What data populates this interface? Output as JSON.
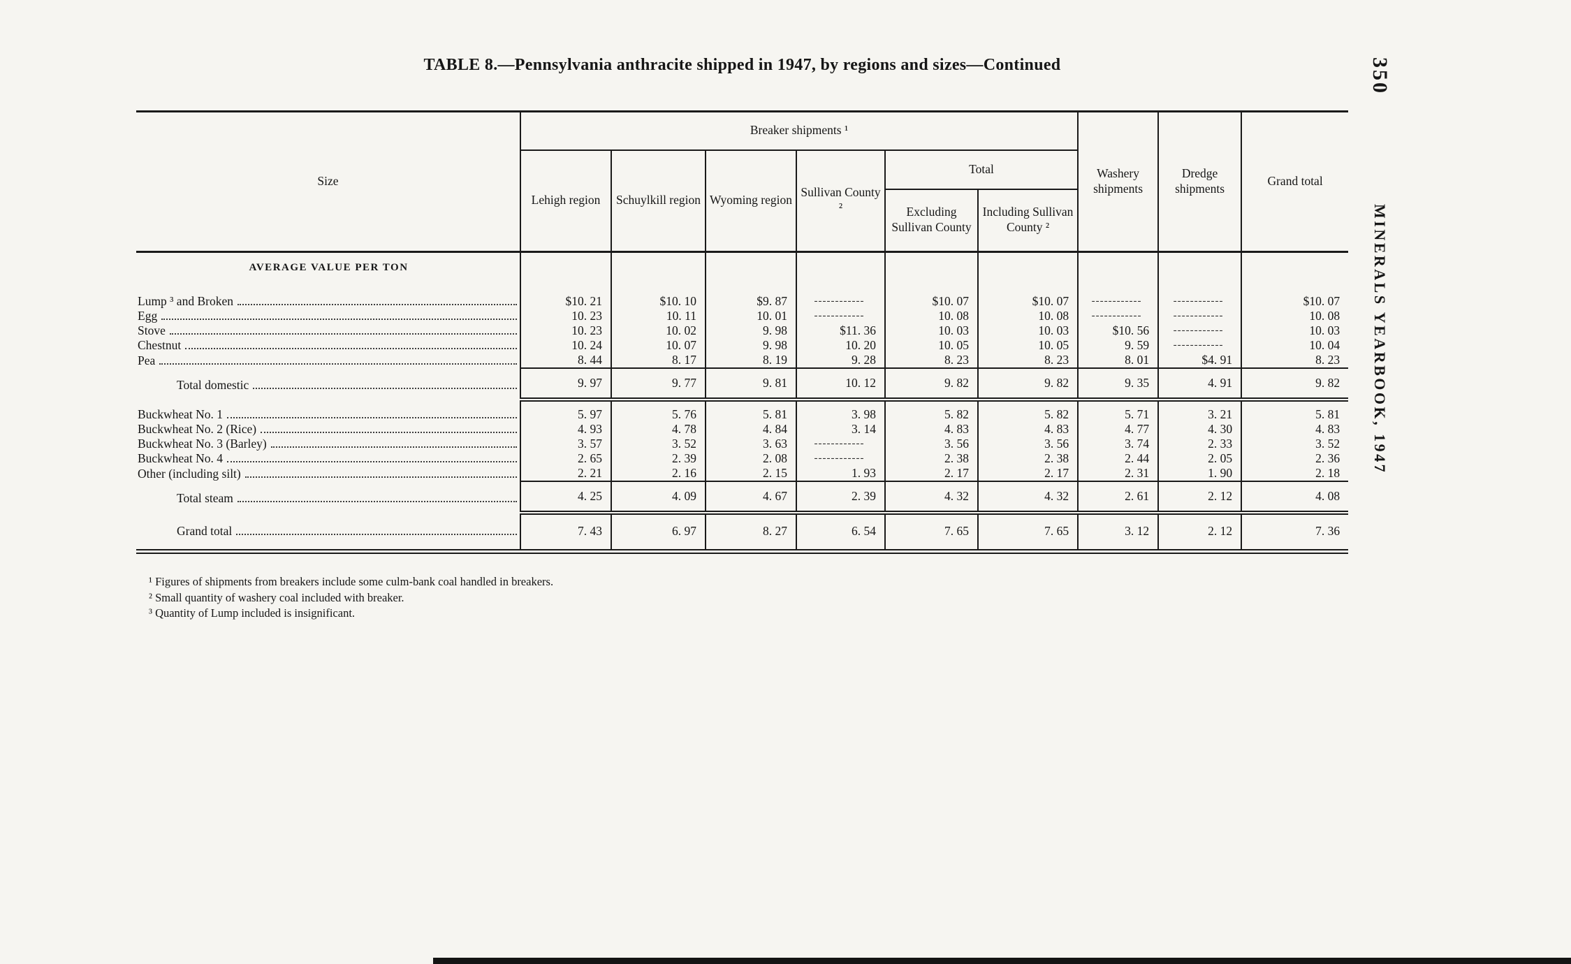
{
  "page": {
    "title": "TABLE 8.—Pennsylvania anthracite shipped in 1947, by regions and sizes—Continued",
    "page_number": "350",
    "margin_text": "MINERALS YEARBOOK, 1947"
  },
  "table": {
    "breaker_group": "Breaker shipments ¹",
    "total_group": "Total",
    "col_size": "Size",
    "col_lehigh": "Lehigh region",
    "col_schuylkill": "Schuylkill region",
    "col_wyoming": "Wyoming region",
    "col_sullivan": "Sullivan County ²",
    "col_excluding": "Excluding Sullivan County",
    "col_including": "Including Sullivan County ²",
    "col_washery": "Washery shipments",
    "col_dredge": "Dredge shipments",
    "col_grand": "Grand total",
    "section_header": "AVERAGE VALUE PER TON",
    "rows": [
      {
        "label": "Lump ³ and Broken",
        "type": "data",
        "group_start": true,
        "values": [
          "$10. 21",
          "$10. 10",
          "$9. 87",
          "------------",
          "$10. 07",
          "$10. 07",
          "------------",
          "------------",
          "$10. 07"
        ]
      },
      {
        "label": "Egg",
        "type": "data",
        "values": [
          "10. 23",
          "10. 11",
          "10. 01",
          "------------",
          "10. 08",
          "10. 08",
          "------------",
          "------------",
          "10. 08"
        ]
      },
      {
        "label": "Stove",
        "type": "data",
        "values": [
          "10. 23",
          "10. 02",
          "9. 98",
          "$11. 36",
          "10. 03",
          "10. 03",
          "$10. 56",
          "------------",
          "10. 03"
        ]
      },
      {
        "label": "Chestnut",
        "type": "data",
        "values": [
          "10. 24",
          "10. 07",
          "9. 98",
          "10. 20",
          "10. 05",
          "10. 05",
          "9. 59",
          "------------",
          "10. 04"
        ]
      },
      {
        "label": "Pea",
        "type": "data",
        "values": [
          "8. 44",
          "8. 17",
          "8. 19",
          "9. 28",
          "8. 23",
          "8. 23",
          "8. 01",
          "$4. 91",
          "8. 23"
        ]
      },
      {
        "label": "Total domestic",
        "type": "total",
        "values": [
          "9. 97",
          "9. 77",
          "9. 81",
          "10. 12",
          "9. 82",
          "9. 82",
          "9. 35",
          "4. 91",
          "9. 82"
        ]
      },
      {
        "label": "Buckwheat No. 1",
        "type": "data",
        "group_start": true,
        "values": [
          "5. 97",
          "5. 76",
          "5. 81",
          "3. 98",
          "5. 82",
          "5. 82",
          "5. 71",
          "3. 21",
          "5. 81"
        ]
      },
      {
        "label": "Buckwheat No. 2 (Rice)",
        "type": "data",
        "values": [
          "4. 93",
          "4. 78",
          "4. 84",
          "3. 14",
          "4. 83",
          "4. 83",
          "4. 77",
          "4. 30",
          "4. 83"
        ]
      },
      {
        "label": "Buckwheat No. 3 (Barley)",
        "type": "data",
        "values": [
          "3. 57",
          "3. 52",
          "3. 63",
          "------------",
          "3. 56",
          "3. 56",
          "3. 74",
          "2. 33",
          "3. 52"
        ]
      },
      {
        "label": "Buckwheat No. 4",
        "type": "data",
        "values": [
          "2. 65",
          "2. 39",
          "2. 08",
          "------------",
          "2. 38",
          "2. 38",
          "2. 44",
          "2. 05",
          "2. 36"
        ]
      },
      {
        "label": "Other (including silt)",
        "type": "data",
        "values": [
          "2. 21",
          "2. 16",
          "2. 15",
          "1. 93",
          "2. 17",
          "2. 17",
          "2. 31",
          "1. 90",
          "2. 18"
        ]
      },
      {
        "label": "Total steam",
        "type": "total",
        "values": [
          "4. 25",
          "4. 09",
          "4. 67",
          "2. 39",
          "4. 32",
          "4. 32",
          "2. 61",
          "2. 12",
          "4. 08"
        ]
      },
      {
        "label": "Grand total",
        "type": "grand",
        "values": [
          "7. 43",
          "6. 97",
          "8. 27",
          "6. 54",
          "7. 65",
          "7. 65",
          "3. 12",
          "2. 12",
          "7. 36"
        ]
      }
    ]
  },
  "footnotes": [
    "¹ Figures of shipments from breakers include some culm-bank coal handled in breakers.",
    "² Small quantity of washery coal included with breaker.",
    "³ Quantity of Lump included is insignificant."
  ]
}
